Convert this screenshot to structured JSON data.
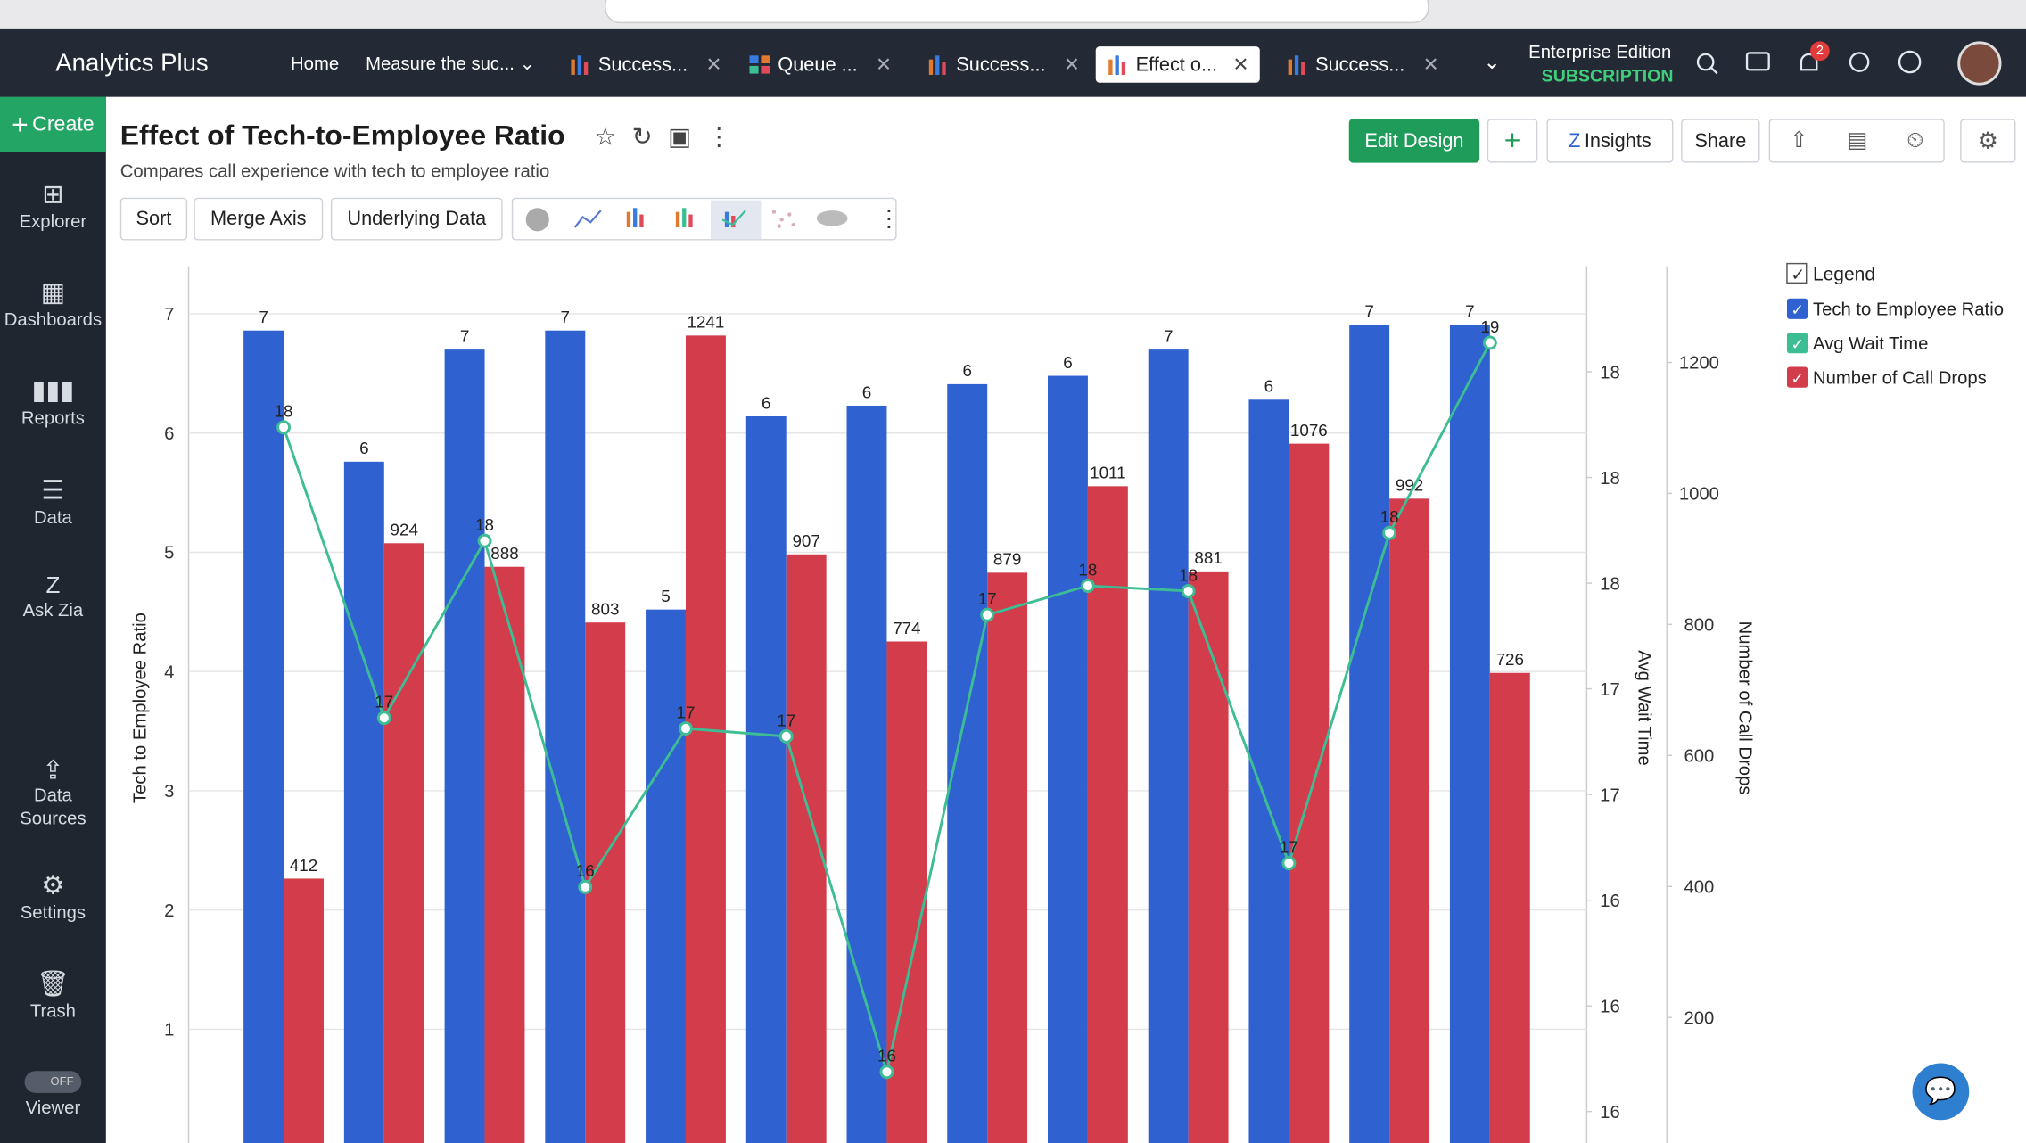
{
  "header": {
    "brand": "Analytics Plus",
    "nav": [
      "Home",
      "Measure the suc..."
    ],
    "tabs": [
      "Success...",
      "Queue ...",
      "Success...",
      "Effect o...",
      "Success..."
    ],
    "edition": "Enterprise Edition",
    "subscription": "SUBSCRIPTION",
    "notifications": 2
  },
  "sidebar": {
    "create": "Create",
    "items": [
      "Explorer",
      "Dashboards",
      "Reports",
      "Data",
      "Ask Zia",
      "Data Sources",
      "Settings",
      "Trash"
    ],
    "toggle": "OFF",
    "viewer": "Viewer"
  },
  "report": {
    "title": "Effect of Tech-to-Employee Ratio",
    "subtitle": "Compares call experience with tech to employee ratio",
    "toolbar": [
      "Sort",
      "Merge Axis",
      "Underlying Data"
    ],
    "actions": [
      "Edit Design",
      "Insights",
      "Share"
    ]
  },
  "chart_data": {
    "type": "combo",
    "legend": "right",
    "legend_title": "Legend",
    "grid": true,
    "categories": [
      null,
      null,
      null,
      null,
      null,
      null,
      null,
      null,
      null,
      null,
      null,
      null,
      null
    ],
    "ylabel": "Tech to Employee Ratio",
    "y2label": "Avg Wait Time",
    "y3label": "Number of Call Drops",
    "ylim": [
      0,
      7.4
    ],
    "yticks": [
      1,
      2,
      3,
      4,
      5,
      6,
      7
    ],
    "y2lim": [
      15.46,
      18.8
    ],
    "y2ticks": [
      {
        "value": 15.6,
        "label": "16"
      },
      {
        "value": 16.0,
        "label": "16"
      },
      {
        "value": 16.4,
        "label": "16"
      },
      {
        "value": 16.8,
        "label": "17"
      },
      {
        "value": 17.2,
        "label": "17"
      },
      {
        "value": 17.6,
        "label": "18"
      },
      {
        "value": 18.0,
        "label": "18"
      },
      {
        "value": 18.4,
        "label": "18"
      }
    ],
    "y3lim": [
      0,
      1347
    ],
    "y3ticks": [
      200,
      400,
      600,
      800,
      1000,
      1200
    ],
    "series": [
      {
        "name": "Tech to Employee Ratio",
        "type": "bar",
        "color": "#2f62d0",
        "axis": "y",
        "values": [
          6.86,
          5.76,
          6.7,
          6.86,
          4.52,
          6.14,
          6.23,
          6.41,
          6.48,
          6.7,
          6.28,
          6.91,
          6.91
        ],
        "value_labels": [
          "7",
          "6",
          "7",
          "7",
          "5",
          "6",
          "6",
          "6",
          "6",
          "7",
          "6",
          "7",
          "7"
        ]
      },
      {
        "name": "Avg Wait Time",
        "type": "line",
        "color": "#3dbd94",
        "axis": "y2",
        "values": [
          18.19,
          17.09,
          17.76,
          16.45,
          17.05,
          17.02,
          15.75,
          17.48,
          17.59,
          17.57,
          16.54,
          17.79,
          18.51
        ],
        "value_labels": [
          "18",
          "17",
          "18",
          "16",
          "17",
          "17",
          "16",
          "17",
          "18",
          "18",
          "17",
          "18",
          "19"
        ]
      },
      {
        "name": "Number of Call Drops",
        "type": "bar",
        "color": "#d23c4b",
        "axis": "y3",
        "values": [
          412,
          924,
          888,
          803,
          1241,
          907,
          774,
          879,
          1011,
          881,
          1076,
          992,
          726
        ]
      }
    ]
  }
}
